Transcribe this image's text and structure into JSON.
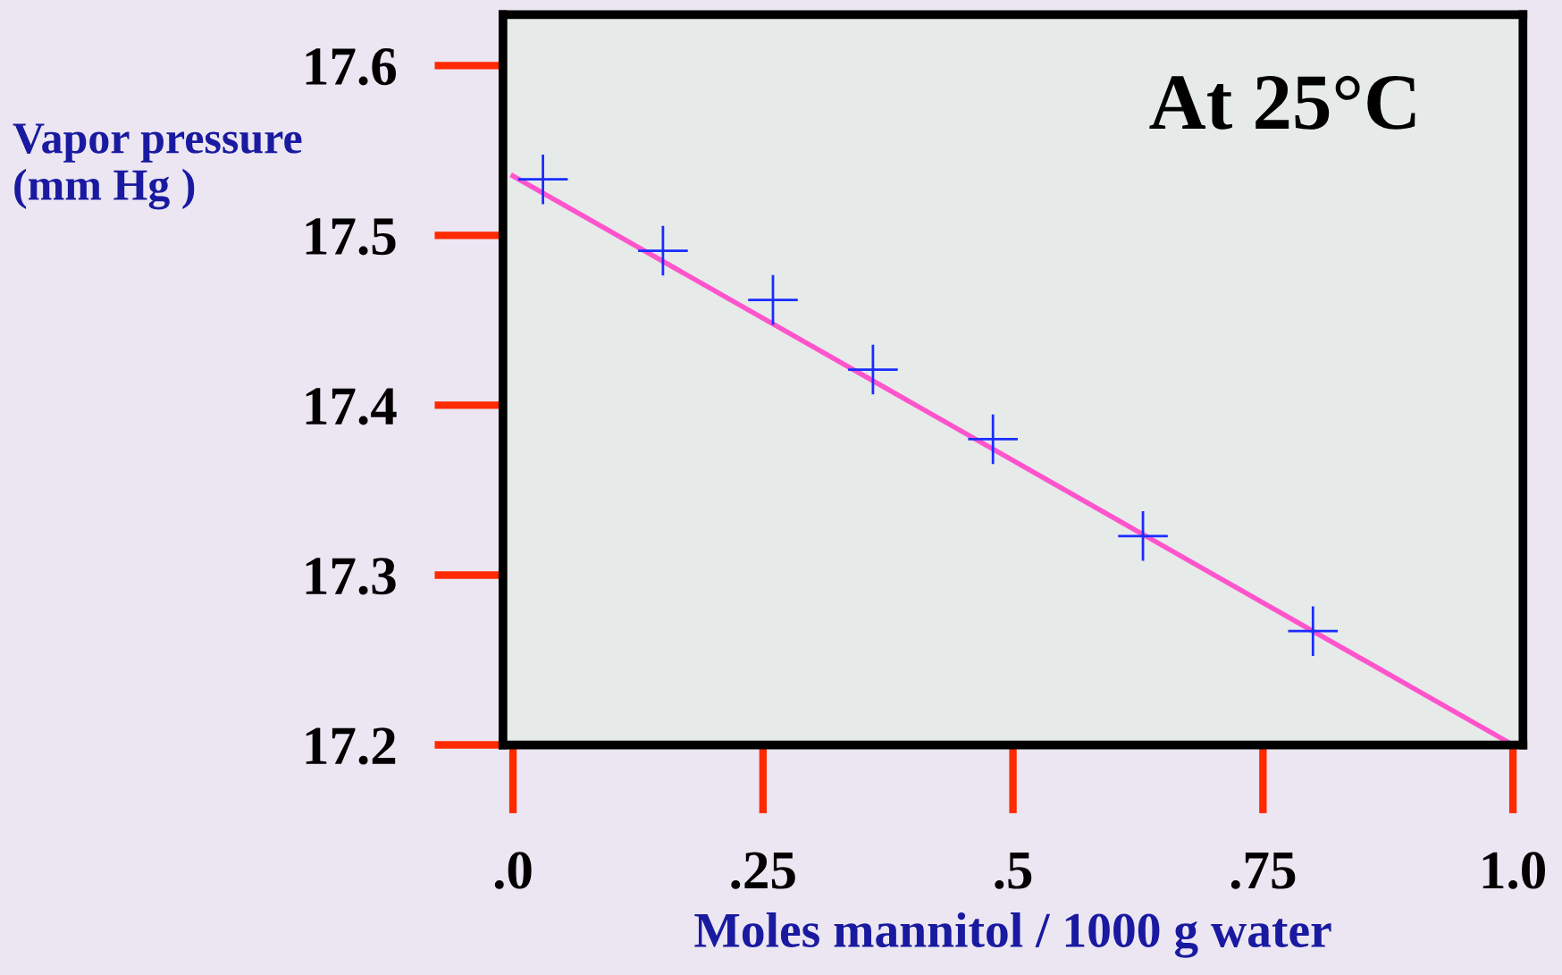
{
  "chart_data": {
    "type": "scatter",
    "xlabel": "Moles mannitol / 1000 g water",
    "ylabel": "Vapor pressure\n(mm Hg )",
    "annotations": [
      "At 25°C"
    ],
    "series": [
      {
        "type": "line",
        "color": "#ff55cc",
        "x": [
          0.0,
          1.0
        ],
        "values": [
          17.535,
          17.2
        ],
        "marker": "none"
      },
      {
        "color": "#1a2cff",
        "x": [
          0.03,
          0.15,
          0.26,
          0.36,
          0.48,
          0.63,
          0.8
        ],
        "values": [
          17.533,
          17.491,
          17.462,
          17.421,
          17.38,
          17.323,
          17.267
        ],
        "marker": "cross"
      }
    ],
    "xlim": [
      -0.01,
      1.01
    ],
    "ylim": [
      17.2,
      17.63
    ],
    "xticks": [
      {
        "value": 0,
        "label": ".0"
      },
      {
        "value": 0.25,
        "label": ".25"
      },
      {
        "value": 0.5,
        "label": ".5"
      },
      {
        "value": 0.75,
        "label": ".75"
      },
      {
        "value": 1.0,
        "label": "1.0"
      }
    ],
    "yticks": [
      17.2,
      17.3,
      17.4,
      17.5,
      17.6
    ],
    "grid": false,
    "legend": false
  }
}
